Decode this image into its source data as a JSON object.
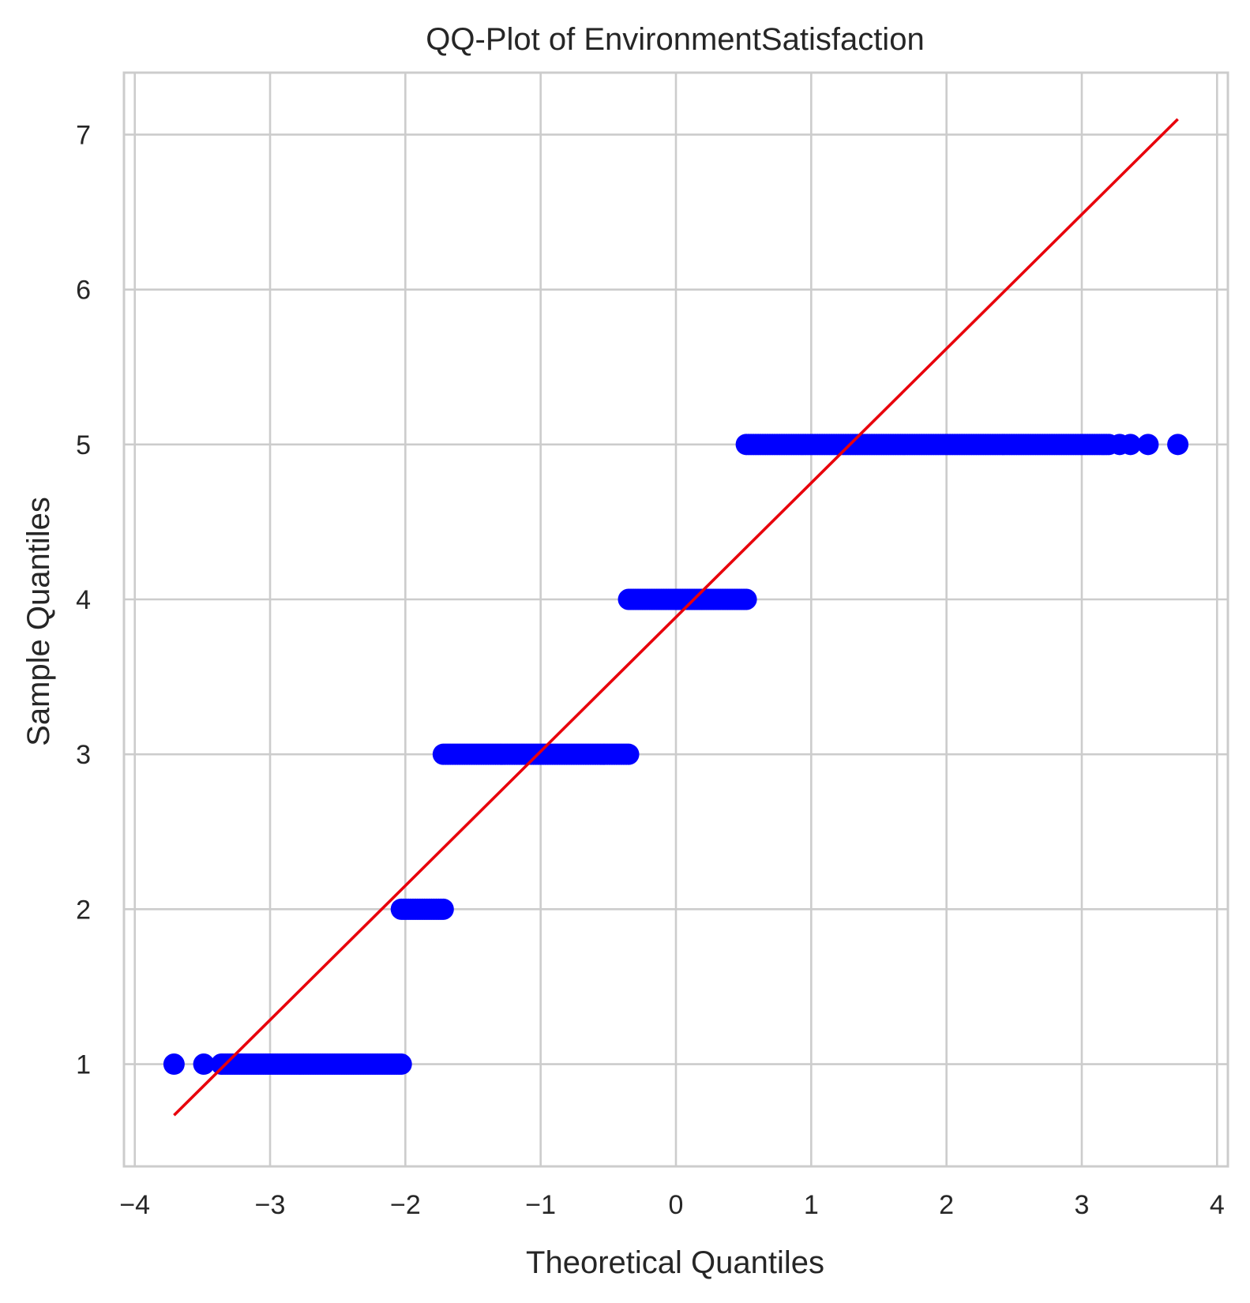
{
  "chart_data": {
    "type": "scatter",
    "title": "QQ-Plot of EnvironmentSatisfaction",
    "xlabel": "Theoretical Quantiles",
    "ylabel": "Sample Quantiles",
    "xlim": [
      -4.08,
      4.08
    ],
    "ylim": [
      0.34,
      7.4
    ],
    "xticks": [
      -4,
      -3,
      -2,
      -1,
      0,
      1,
      2,
      3,
      4
    ],
    "xtick_labels": [
      "−4",
      "−3",
      "−2",
      "−1",
      "0",
      "1",
      "2",
      "3",
      "4"
    ],
    "yticks": [
      1,
      2,
      3,
      4,
      5,
      6,
      7
    ],
    "ytick_labels": [
      "1",
      "2",
      "3",
      "4",
      "5",
      "6",
      "7"
    ],
    "grid": true,
    "colors": {
      "points": "#0000ff",
      "line": "#e8000b",
      "grid": "#cccccc",
      "spine": "#cccccc"
    },
    "series": [
      {
        "type": "scatter",
        "note_marker": "filled-circle",
        "groups": [
          {
            "y": 1,
            "x_start": -3.35,
            "x_end": -2.03,
            "isolated_x": [
              -3.71,
              -3.49,
              -3.36
            ]
          },
          {
            "y": 2,
            "x_start": -2.03,
            "x_end": -1.72,
            "isolated_x": []
          },
          {
            "y": 3,
            "x_start": -1.72,
            "x_end": -0.35,
            "isolated_x": []
          },
          {
            "y": 4,
            "x_start": -0.35,
            "x_end": 0.52,
            "isolated_x": []
          },
          {
            "y": 5,
            "x_start": 0.52,
            "x_end": 3.2,
            "isolated_x": [
              3.28,
              3.36,
              3.49,
              3.71
            ]
          }
        ]
      },
      {
        "type": "line",
        "x": [
          -3.71,
          3.71
        ],
        "y": [
          0.67,
          7.1
        ]
      }
    ]
  }
}
